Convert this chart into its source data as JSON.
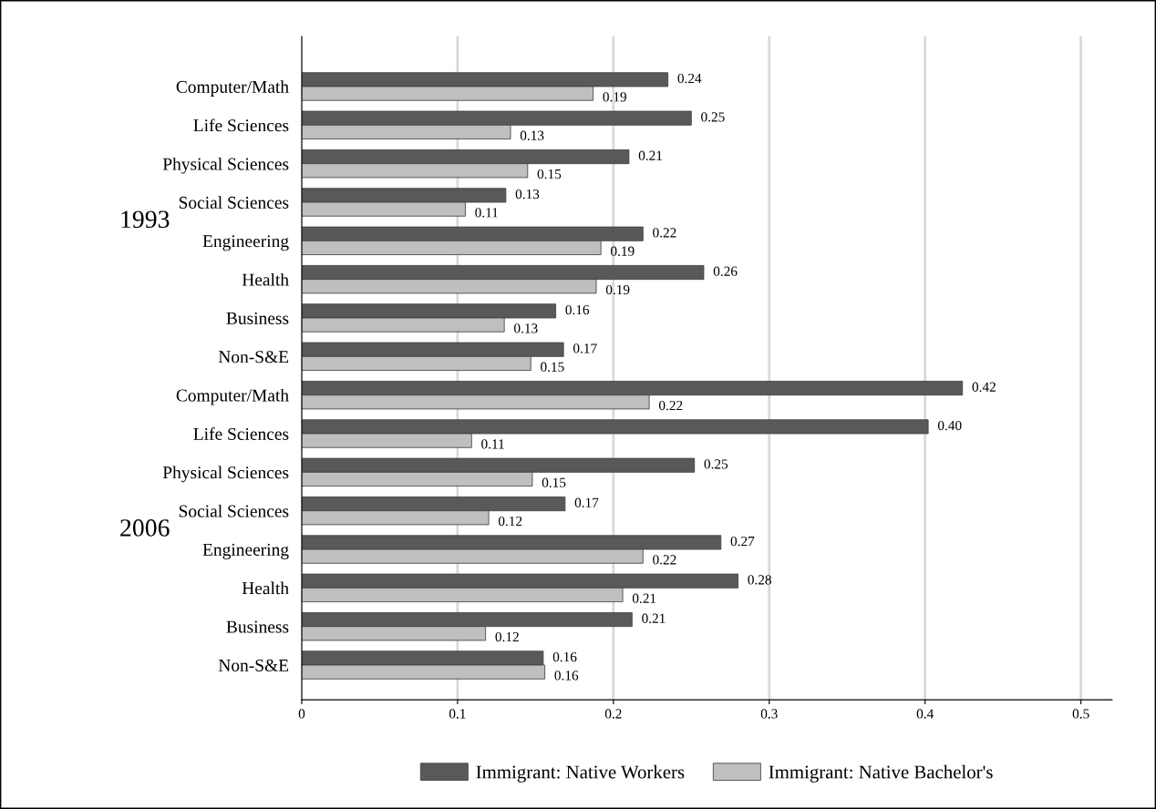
{
  "chart_data": {
    "type": "bar",
    "orientation": "horizontal",
    "categories": [
      "Computer/Math",
      "Life Sciences",
      "Physical Sciences",
      "Social Sciences",
      "Engineering",
      "Health",
      "Business",
      "Non-S&E",
      "Computer/Math",
      "Life Sciences",
      "Physical Sciences",
      "Social Sciences",
      "Engineering",
      "Health",
      "Business",
      "Non-S&E"
    ],
    "series": [
      {
        "name": "Immigrant: Native Workers",
        "color": "#595959",
        "values": [
          0.235,
          0.25,
          0.21,
          0.131,
          0.219,
          0.258,
          0.163,
          0.168,
          0.424,
          0.402,
          0.252,
          0.169,
          0.269,
          0.28,
          0.212,
          0.155
        ],
        "value_labels": [
          "0.24",
          "0.25",
          "0.21",
          "0.13",
          "0.22",
          "0.26",
          "0.16",
          "0.17",
          "0.42",
          "0.40",
          "0.25",
          "0.17",
          "0.27",
          "0.28",
          "0.21",
          "0.16"
        ]
      },
      {
        "name": "Immigrant: Native Bachelor's",
        "color": "#bfbfbf",
        "values": [
          0.187,
          0.134,
          0.145,
          0.105,
          0.192,
          0.189,
          0.13,
          0.147,
          0.223,
          0.109,
          0.148,
          0.12,
          0.219,
          0.206,
          0.118,
          0.156
        ],
        "value_labels": [
          "0.19",
          "0.13",
          "0.15",
          "0.11",
          "0.19",
          "0.19",
          "0.13",
          "0.15",
          "0.22",
          "0.11",
          "0.15",
          "0.12",
          "0.22",
          "0.21",
          "0.12",
          "0.16"
        ]
      }
    ],
    "annotations": [
      "1993",
      "2006"
    ],
    "xlim": [
      0,
      0.52
    ],
    "xticks": [
      0,
      0.1,
      0.2,
      0.3,
      0.4,
      0.5
    ],
    "grid": "x",
    "legend": "bottom"
  }
}
